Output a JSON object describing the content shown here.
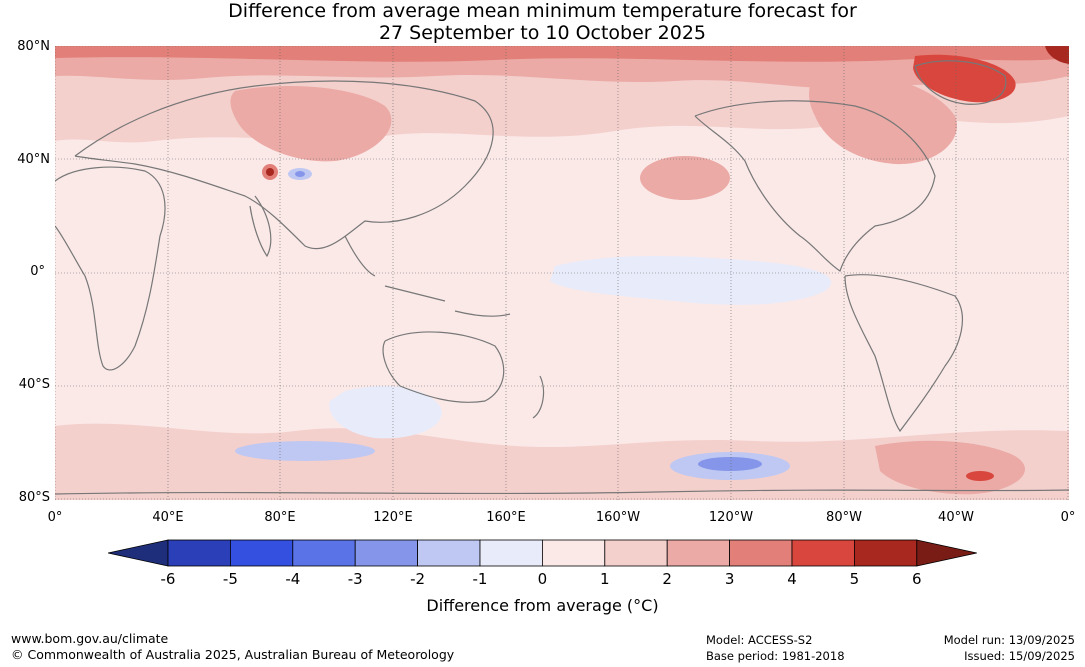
{
  "title_line1": "Difference from average mean minimum temperature forecast for",
  "title_line2": "27 September to 10 October 2025",
  "lat_labels": [
    "80°N",
    "40°N",
    "0°",
    "40°S",
    "80°S"
  ],
  "lon_labels": [
    "0°",
    "40°E",
    "80°E",
    "120°E",
    "160°E",
    "160°W",
    "120°W",
    "80°W",
    "40°W",
    "0°"
  ],
  "colorbar": {
    "ticks": [
      "-6",
      "-5",
      "-4",
      "-3",
      "-2",
      "-1",
      "0",
      "1",
      "2",
      "3",
      "4",
      "5",
      "6"
    ],
    "colors": [
      "#1f2e7a",
      "#2a3fb8",
      "#3450e0",
      "#5a73e6",
      "#8596ea",
      "#bfc8f2",
      "#e8ebfa",
      "#fbe9e8",
      "#f4d0cd",
      "#ebaaa6",
      "#e27f78",
      "#d8463d",
      "#a8281f",
      "#7a1c16"
    ],
    "label": "Difference from average (°C)"
  },
  "footer": {
    "url": "www.bom.gov.au/climate",
    "copyright": "© Commonwealth of Australia 2025, Australian Bureau of Meteorology",
    "model": "Model: ACCESS-S2",
    "base_period": "Base period: 1981-2018",
    "model_run": "Model run: 13/09/2025",
    "issued": "Issued: 15/09/2025"
  }
}
